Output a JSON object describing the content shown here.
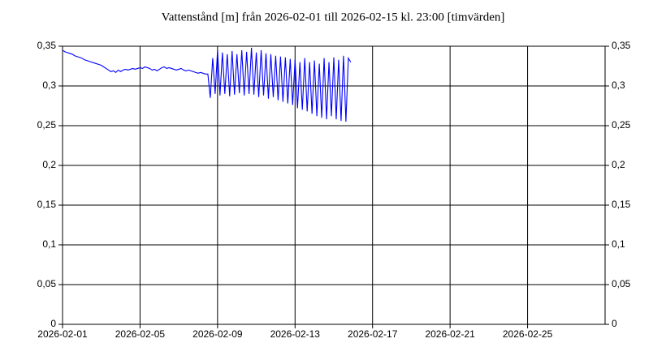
{
  "chart_data": {
    "type": "line",
    "title": "Vattenstånd [m] från 2026-02-01 till 2026-02-15 kl. 23:00 [timvärden]",
    "x": [
      0,
      0.125,
      0.25,
      0.375,
      0.5,
      0.625,
      0.75,
      0.875,
      1,
      1.125,
      1.25,
      1.375,
      1.5,
      1.625,
      1.75,
      1.875,
      2,
      2.125,
      2.25,
      2.375,
      2.5,
      2.625,
      2.75,
      2.875,
      3,
      3.125,
      3.25,
      3.375,
      3.5,
      3.625,
      3.75,
      3.875,
      4,
      4.125,
      4.25,
      4.375,
      4.5,
      4.625,
      4.75,
      4.875,
      5,
      5.125,
      5.25,
      5.375,
      5.5,
      5.625,
      5.75,
      5.875,
      6,
      6.125,
      6.25,
      6.375,
      6.5,
      6.625,
      6.75,
      6.875,
      7,
      7.125,
      7.25,
      7.375,
      7.5,
      7.625,
      7.75,
      7.875,
      8,
      8.125,
      8.25,
      8.375,
      8.5,
      8.625,
      8.75,
      8.875,
      9,
      9.125,
      9.25,
      9.375,
      9.5,
      9.625,
      9.75,
      9.875,
      10,
      10.125,
      10.25,
      10.375,
      10.5,
      10.625,
      10.75,
      10.875,
      11,
      11.125,
      11.25,
      11.375,
      11.5,
      11.625,
      11.75,
      11.875,
      12,
      12.125,
      12.25,
      12.375,
      12.5,
      12.625,
      12.75,
      12.875,
      13,
      13.125,
      13.25,
      13.375,
      13.5,
      13.625,
      13.75,
      13.875,
      14,
      14.125,
      14.25,
      14.375,
      14.5,
      14.625,
      14.75,
      14.875
    ],
    "series": [
      {
        "name": "Vattenstånd",
        "color": "#0000ff",
        "values": [
          0.345,
          0.343,
          0.342,
          0.341,
          0.34,
          0.338,
          0.337,
          0.336,
          0.335,
          0.333,
          0.332,
          0.331,
          0.33,
          0.329,
          0.328,
          0.327,
          0.326,
          0.324,
          0.322,
          0.32,
          0.318,
          0.319,
          0.317,
          0.32,
          0.318,
          0.32,
          0.321,
          0.32,
          0.321,
          0.322,
          0.321,
          0.322,
          0.323,
          0.322,
          0.324,
          0.323,
          0.322,
          0.32,
          0.321,
          0.319,
          0.321,
          0.323,
          0.324,
          0.322,
          0.323,
          0.322,
          0.321,
          0.32,
          0.321,
          0.322,
          0.32,
          0.319,
          0.32,
          0.319,
          0.318,
          0.317,
          0.316,
          0.317,
          0.316,
          0.315,
          0.315,
          0.285,
          0.335,
          0.29,
          0.345,
          0.288,
          0.342,
          0.29,
          0.34,
          0.287,
          0.344,
          0.289,
          0.34,
          0.291,
          0.345,
          0.288,
          0.343,
          0.29,
          0.348,
          0.289,
          0.342,
          0.286,
          0.345,
          0.288,
          0.341,
          0.284,
          0.34,
          0.286,
          0.338,
          0.282,
          0.337,
          0.28,
          0.336,
          0.278,
          0.334,
          0.276,
          0.333,
          0.272,
          0.33,
          0.27,
          0.335,
          0.268,
          0.33,
          0.265,
          0.332,
          0.262,
          0.328,
          0.26,
          0.335,
          0.258,
          0.33,
          0.262,
          0.336,
          0.258,
          0.333,
          0.256,
          0.338,
          0.255,
          0.335,
          0.33
        ]
      }
    ],
    "xlim": [
      0,
      28
    ],
    "xticks": [
      {
        "value": 0,
        "label": "2026-02-01"
      },
      {
        "value": 4,
        "label": "2026-02-05"
      },
      {
        "value": 8,
        "label": "2026-02-09"
      },
      {
        "value": 12,
        "label": "2026-02-13"
      },
      {
        "value": 16,
        "label": "2026-02-17"
      },
      {
        "value": 20,
        "label": "2026-02-21"
      },
      {
        "value": 24,
        "label": "2026-02-25"
      }
    ],
    "ylim": [
      0,
      0.35
    ],
    "yticks": [
      0,
      {
        "value": 0.05,
        "label": "0,05"
      },
      {
        "value": 0.1,
        "label": "0,1"
      },
      {
        "value": 0.15,
        "label": "0,15"
      },
      {
        "value": 0.2,
        "label": "0,2"
      },
      {
        "value": 0.25,
        "label": "0,25"
      },
      {
        "value": 0.3,
        "label": "0,3"
      },
      {
        "value": 0.35,
        "label": "0,35"
      }
    ],
    "grid": true
  }
}
